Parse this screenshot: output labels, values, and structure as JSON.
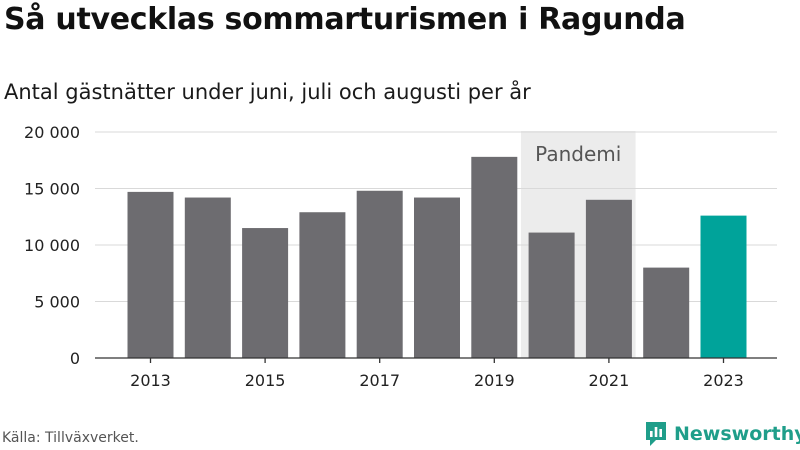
{
  "title": "Så utvecklas sommarturismen i Ragunda",
  "subtitle": "Antal gästnätter under juni, juli och augusti per år",
  "source": "Källa: Tillväxverket.",
  "brand": {
    "name": "Newsworthy",
    "icon": "newsworthy-logo-icon",
    "color": "#1f9e8a"
  },
  "colors": {
    "bar_default": "#6d6c70",
    "bar_highlight": "#00a39a",
    "pandemic_band": "#ececec",
    "grid": "#d9d9d9",
    "axis": "#333333"
  },
  "chart_data": {
    "type": "bar",
    "categories": [
      "2013",
      "2014",
      "2015",
      "2016",
      "2017",
      "2018",
      "2019",
      "2020",
      "2021",
      "2022",
      "2023"
    ],
    "values": [
      14700,
      14200,
      11500,
      12900,
      14800,
      14200,
      17800,
      11100,
      14000,
      8000,
      12600
    ],
    "highlight_category": "2023",
    "x_tick_labels": [
      "2013",
      "2015",
      "2017",
      "2019",
      "2021",
      "2023"
    ],
    "y_ticks": [
      0,
      5000,
      10000,
      15000,
      20000
    ],
    "y_tick_labels": [
      "0",
      "5 000",
      "10 000",
      "15 000",
      "20 000"
    ],
    "ylim": [
      0,
      20000
    ],
    "grid": true,
    "xlabel": "",
    "ylabel": "",
    "annotations": [
      {
        "label": "Pandemi",
        "from": "2020",
        "to": "2021"
      }
    ]
  }
}
